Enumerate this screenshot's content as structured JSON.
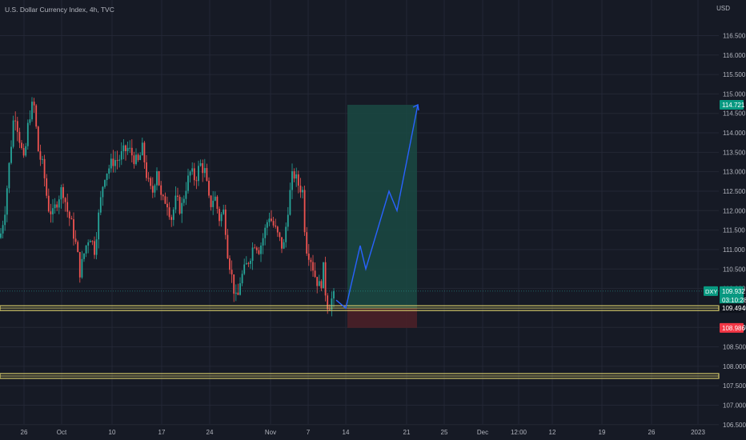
{
  "header": {
    "title": "U.S. Dollar Currency Index, 4h, TVC",
    "currency": "USD"
  },
  "colors": {
    "background": "#161a25",
    "grid": "#232735",
    "up": "#26a69a",
    "down": "#ef5350",
    "profit_zone": "#1a4a43",
    "loss_zone": "#4a2028",
    "arrow": "#2962ff",
    "level_line": "#d4c96a",
    "axis_text": "#b2b5be"
  },
  "chart_data": {
    "type": "candlestick",
    "symbol": "DXY",
    "interval": "4h",
    "ylim": [
      106.3,
      117.2
    ],
    "y_ticks": [
      "116.500",
      "116.000",
      "115.500",
      "115.000",
      "114.500",
      "114.000",
      "113.500",
      "113.000",
      "112.500",
      "112.000",
      "111.500",
      "111.000",
      "110.500",
      "110.000",
      "109.500",
      "109.000",
      "108.500",
      "108.000",
      "107.500",
      "107.000",
      "106.500"
    ],
    "x_ticks": [
      "26",
      "Oct",
      "10",
      "17",
      "24",
      "Nov",
      "7",
      "14",
      "21",
      "25",
      "Dec",
      "12:00",
      "12",
      "19",
      "26",
      "2023"
    ],
    "price_path": [
      [
        0,
        111.3
      ],
      [
        6,
        112.0
      ],
      [
        12,
        113.3
      ],
      [
        18,
        114.6
      ],
      [
        24,
        113.9
      ],
      [
        30,
        113.2
      ],
      [
        36,
        114.4
      ],
      [
        42,
        114.8
      ],
      [
        48,
        113.5
      ],
      [
        54,
        113.1
      ],
      [
        60,
        112.1
      ],
      [
        66,
        111.9
      ],
      [
        72,
        112.3
      ],
      [
        78,
        112.6
      ],
      [
        84,
        112.0
      ],
      [
        90,
        111.6
      ],
      [
        96,
        111.0
      ],
      [
        100,
        110.4
      ],
      [
        106,
        111.0
      ],
      [
        112,
        111.4
      ],
      [
        118,
        111.0
      ],
      [
        124,
        112.0
      ],
      [
        130,
        112.9
      ],
      [
        136,
        113.1
      ],
      [
        142,
        113.3
      ],
      [
        148,
        113.3
      ],
      [
        154,
        113.5
      ],
      [
        160,
        113.6
      ],
      [
        166,
        113.4
      ],
      [
        172,
        113.2
      ],
      [
        178,
        113.6
      ],
      [
        184,
        112.8
      ],
      [
        190,
        112.4
      ],
      [
        196,
        113.1
      ],
      [
        202,
        112.2
      ],
      [
        208,
        112.3
      ],
      [
        214,
        111.8
      ],
      [
        220,
        112.3
      ],
      [
        226,
        112.0
      ],
      [
        232,
        112.6
      ],
      [
        238,
        113.0
      ],
      [
        244,
        112.8
      ],
      [
        250,
        113.2
      ],
      [
        256,
        113.0
      ],
      [
        262,
        112.1
      ],
      [
        268,
        112.4
      ],
      [
        274,
        111.8
      ],
      [
        280,
        112.0
      ],
      [
        284,
        111.0
      ],
      [
        288,
        110.5
      ],
      [
        292,
        110.0
      ],
      [
        296,
        109.6
      ],
      [
        300,
        110.2
      ],
      [
        306,
        110.5
      ],
      [
        312,
        110.8
      ],
      [
        318,
        111.2
      ],
      [
        324,
        111.0
      ],
      [
        330,
        111.4
      ],
      [
        336,
        111.9
      ],
      [
        342,
        111.6
      ],
      [
        348,
        111.3
      ],
      [
        354,
        111.0
      ],
      [
        360,
        112.1
      ],
      [
        366,
        113.0
      ],
      [
        372,
        112.7
      ],
      [
        378,
        112.5
      ],
      [
        382,
        111.1
      ],
      [
        388,
        110.8
      ],
      [
        394,
        110.3
      ],
      [
        400,
        110.0
      ],
      [
        404,
        110.5
      ],
      [
        408,
        109.6
      ],
      [
        412,
        109.6
      ],
      [
        416,
        109.8
      ],
      [
        420,
        109.7
      ]
    ]
  },
  "position": {
    "entry_price": 109.494,
    "target_price": 114.721,
    "stop_price": 108.986
  },
  "projection_path": [
    [
      420,
      109.7
    ],
    [
      432,
      109.494
    ],
    [
      450,
      111.1
    ],
    [
      457,
      110.5
    ],
    [
      486,
      112.5
    ],
    [
      496,
      112.0
    ],
    [
      522,
      114.721
    ]
  ],
  "levels": [
    109.494,
    107.75
  ],
  "badges": {
    "symbol": "DXY",
    "price": "109.932",
    "countdown": "03:10:28",
    "entry": "109.494",
    "target": "114.721",
    "stop": "108.986"
  }
}
